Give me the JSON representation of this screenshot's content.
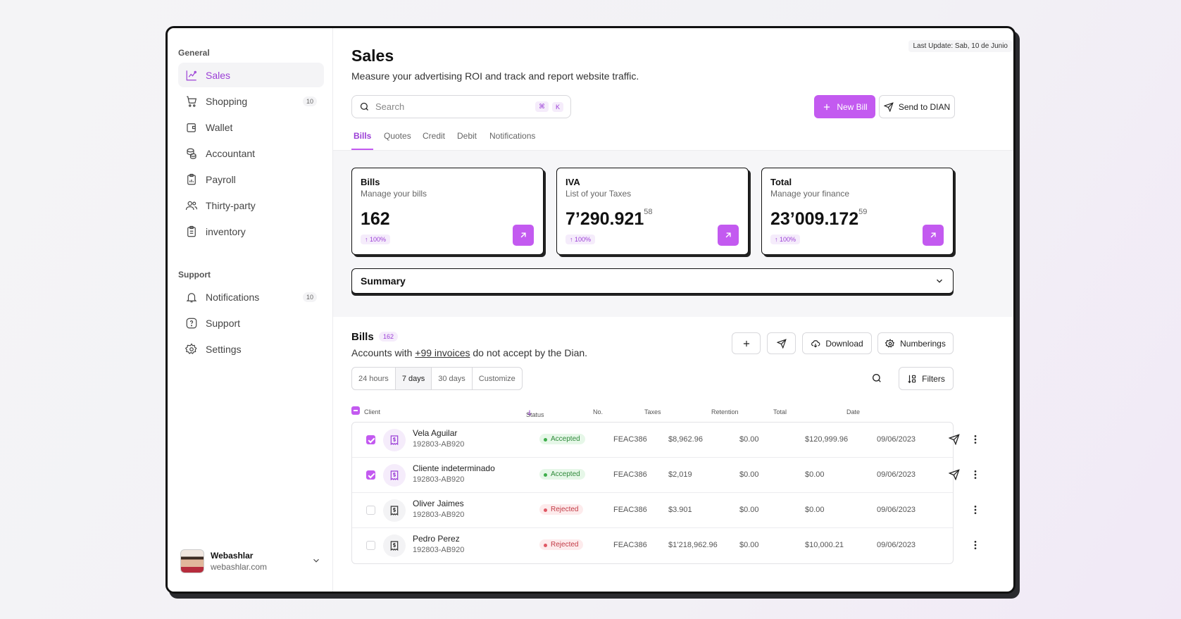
{
  "sidebar": {
    "general_title": "General",
    "general_items": [
      {
        "label": "Sales",
        "icon": "chart-icon",
        "active": true
      },
      {
        "label": "Shopping",
        "icon": "cart-icon",
        "count": "10"
      },
      {
        "label": "Wallet",
        "icon": "wallet-icon"
      },
      {
        "label": "Accountant",
        "icon": "coins-icon"
      },
      {
        "label": "Payroll",
        "icon": "clipboard-chart-icon"
      },
      {
        "label": "Thirty-party",
        "icon": "users-icon"
      },
      {
        "label": "inventory",
        "icon": "clipboard-list-icon"
      }
    ],
    "support_title": "Support",
    "support_items": [
      {
        "label": "Notifications",
        "icon": "bell-icon",
        "count": "10"
      },
      {
        "label": "Support",
        "icon": "help-icon"
      },
      {
        "label": "Settings",
        "icon": "gear-icon"
      }
    ],
    "user": {
      "name": "Webashlar",
      "site": "webashlar.com"
    }
  },
  "header": {
    "last_update": "Last Update: Sab, 10 de Junio",
    "title": "Sales",
    "subtitle": "Measure your advertising ROI and track and report website traffic.",
    "search_placeholder": "Search",
    "kbd_1": "⌘",
    "kbd_2": "K",
    "new_bill": "New Bill",
    "send_dian": "Send to DIAN"
  },
  "tabs": [
    "Bills",
    "Quotes",
    "Credit",
    "Debit",
    "Notifications"
  ],
  "cards": [
    {
      "title": "Bills",
      "sub": "Manage your bills",
      "value": "162",
      "decimals": "",
      "badge": "100%"
    },
    {
      "title": "IVA",
      "sub": "List of your Taxes",
      "value": "7’290.921",
      "decimals": "58",
      "badge": "100%"
    },
    {
      "title": "Total",
      "sub": "Manage your finance",
      "value": "23’009.172",
      "decimals": "59",
      "badge": "100%"
    }
  ],
  "summary": {
    "title": "Summary"
  },
  "bills": {
    "title": "Bills",
    "count": "162",
    "desc_before": "Accounts with ",
    "desc_link": "+99 invoices",
    "desc_after": " do not accept by the Dian.",
    "download": "Download",
    "numberings": "Numberings",
    "filters": "Filters",
    "ranges": [
      "24 hours",
      "7 days",
      "30 days",
      "Customize"
    ],
    "active_range": "7 days"
  },
  "table": {
    "headers": {
      "client": "Client",
      "status": "Status",
      "no": "No.",
      "taxes": "Taxes",
      "retention": "Retention",
      "total": "Total",
      "date": "Date"
    },
    "rows": [
      {
        "name": "Vela Aguilar",
        "id": "192803-AB920",
        "status": "Accepted",
        "no": "FEAC386",
        "taxes": "$8,962.96",
        "retention": "$0.00",
        "total": "$120,999.96",
        "date": "09/06/2023",
        "checked": true
      },
      {
        "name": "Cliente indeterminado",
        "id": "192803-AB920",
        "status": "Accepted",
        "no": "FEAC386",
        "taxes": "$2,019",
        "retention": "$0.00",
        "total": "$0.00",
        "date": "09/06/2023",
        "checked": true
      },
      {
        "name": "Oliver Jaimes",
        "id": "192803-AB920",
        "status": "Rejected",
        "no": "FEAC386",
        "taxes": "$3.901",
        "retention": "$0.00",
        "total": "$0.00",
        "date": "09/06/2023",
        "checked": false
      },
      {
        "name": "Pedro Perez",
        "id": "192803-AB920",
        "status": "Rejected",
        "no": "FEAC386",
        "taxes": "$1’218,962.96",
        "retention": "$0.00",
        "total": "$10,000.21",
        "date": "09/06/2023",
        "checked": false
      }
    ]
  },
  "colors": {
    "accent": "#c35af0",
    "accent_text": "#9b3fd6",
    "accepted": "#3fae4b",
    "rejected": "#e05864"
  }
}
